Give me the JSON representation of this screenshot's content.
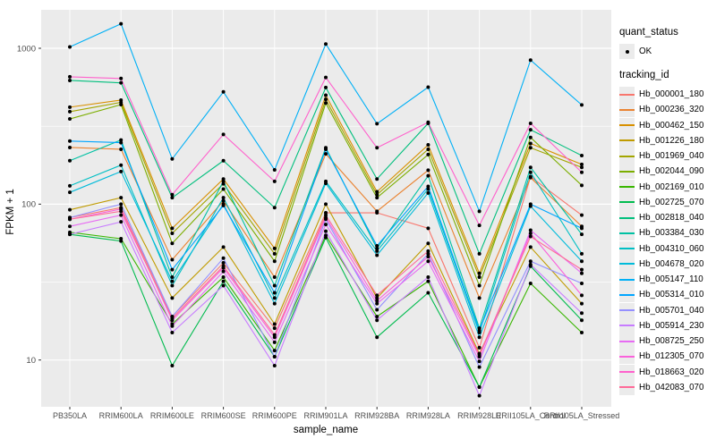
{
  "chart_data": {
    "type": "line",
    "title": "",
    "xlabel": "sample_name",
    "ylabel": "FPKM + 1",
    "y_scale": "log10",
    "y_ticks": [
      10,
      100,
      1000
    ],
    "y_minor": [
      31.62,
      316.23
    ],
    "ylim": [
      4.9,
      1760
    ],
    "grid": true,
    "panel_color": "#EBEBEB",
    "grid_color": "#FFFFFF",
    "tick_text_color": "#4D4D4D",
    "point_color": "#000000",
    "categories": [
      "PB350LA",
      "RRIM600LA",
      "RRIM600LE",
      "RRIM600SE",
      "RRIM600PE",
      "RRIM901LA",
      "RRIM928BA",
      "RRIM928LA",
      "RRIM928LE",
      "RRII105LA_Control",
      "RRII105LA_Stressed"
    ],
    "legend": {
      "position": "right",
      "quant_title": "quant_status",
      "quant_items": [
        {
          "label": "OK",
          "symbol": "point-icon",
          "color": "#000000"
        }
      ],
      "series_title": "tracking_id"
    },
    "series": [
      {
        "name": "Hb_000001_180",
        "color": "#F8766D",
        "values": [
          82,
          95,
          19,
          42,
          16,
          88,
          88,
          70,
          12,
          150,
          85
        ]
      },
      {
        "name": "Hb_000236_320",
        "color": "#EA8331",
        "values": [
          231,
          225,
          44,
          105,
          34,
          210,
          90,
          165,
          25,
          148,
          72
        ]
      },
      {
        "name": "Hb_000462_150",
        "color": "#D89000",
        "values": [
          419,
          465,
          70,
          145,
          52,
          500,
          120,
          240,
          36,
          245,
          180
        ]
      },
      {
        "name": "Hb_001226_180",
        "color": "#C09B00",
        "values": [
          92,
          110,
          25,
          53,
          17,
          100,
          25,
          56,
          11,
          53,
          23
        ]
      },
      {
        "name": "Hb_001969_040",
        "color": "#A3A500",
        "values": [
          392,
          450,
          65,
          135,
          48,
          470,
          115,
          225,
          34,
          230,
          172
        ]
      },
      {
        "name": "Hb_002044_090",
        "color": "#7CAE00",
        "values": [
          352,
          435,
          56,
          125,
          43,
          445,
          110,
          208,
          30,
          268,
          132
        ]
      },
      {
        "name": "Hb_002169_010",
        "color": "#39B600",
        "values": [
          66,
          60,
          17,
          34,
          11.5,
          63,
          19,
          32,
          6.7,
          31,
          15
        ]
      },
      {
        "name": "Hb_002725_070",
        "color": "#00BB4E",
        "values": [
          64,
          58,
          9.2,
          32,
          10.5,
          61,
          14,
          27,
          6.7,
          40,
          18
        ]
      },
      {
        "name": "Hb_002818_040",
        "color": "#00BF7D",
        "values": [
          622,
          600,
          110,
          190,
          95,
          560,
          145,
          330,
          48,
          300,
          205
        ]
      },
      {
        "name": "Hb_003384_030",
        "color": "#00C1A3",
        "values": [
          190,
          258,
          34,
          140,
          30,
          230,
          52,
          152,
          16,
          172,
          64
        ]
      },
      {
        "name": "Hb_004310_060",
        "color": "#00BFC4",
        "values": [
          131,
          178,
          30,
          110,
          25,
          140,
          50,
          125,
          15,
          160,
          48
        ]
      },
      {
        "name": "Hb_004678_020",
        "color": "#00BBDA",
        "values": [
          119,
          162,
          32,
          100,
          23,
          136,
          47,
          118,
          14,
          97,
          43
        ]
      },
      {
        "name": "Hb_005147_110",
        "color": "#00B0F6",
        "values": [
          1020,
          1435,
          195,
          525,
          166,
          1065,
          328,
          563,
          90,
          840,
          433
        ]
      },
      {
        "name": "Hb_005314_010",
        "color": "#00A5FF",
        "values": [
          254,
          248,
          38,
          98,
          27,
          225,
          54,
          130,
          15.5,
          100,
          70
        ]
      },
      {
        "name": "Hb_005701_040",
        "color": "#9590FF",
        "values": [
          82,
          100,
          19,
          45,
          10.5,
          80,
          21,
          48,
          9,
          43,
          31
        ]
      },
      {
        "name": "Hb_005914_230",
        "color": "#C77CFF",
        "values": [
          64,
          77,
          15,
          30,
          9.2,
          67,
          18,
          34,
          5.9,
          41,
          20
        ]
      },
      {
        "name": "Hb_008725_250",
        "color": "#E76BF3",
        "values": [
          72,
          85,
          16.5,
          37,
          13,
          74,
          23,
          43,
          9.8,
          68,
          36
        ]
      },
      {
        "name": "Hb_012305_070",
        "color": "#FA62DB",
        "values": [
          80,
          93,
          18,
          39,
          14,
          82,
          24,
          46,
          10.5,
          65,
          26
        ]
      },
      {
        "name": "Hb_018663_020",
        "color": "#FF61CC",
        "values": [
          656,
          640,
          115,
          280,
          140,
          650,
          230,
          335,
          73,
          330,
          160
        ]
      },
      {
        "name": "Hb_042083_070",
        "color": "#FF6A98",
        "values": [
          80,
          90,
          18.5,
          40,
          14.5,
          85,
          26,
          50,
          10.8,
          62,
          38
        ]
      }
    ]
  }
}
